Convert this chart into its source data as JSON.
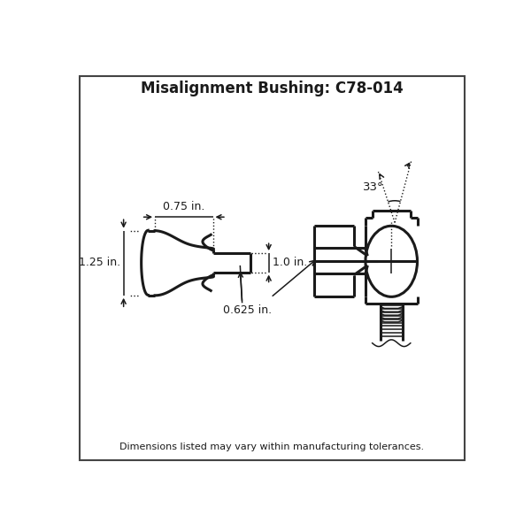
{
  "title": "Misalignment Bushing: C78-014",
  "footer": "Dimensions listed may vary within manufacturing tolerances.",
  "dim_075": "0.75 in.",
  "dim_125": "1.25 in.",
  "dim_10": "1.0 in.",
  "dim_0625": "0.625 in.",
  "angle_label": "33°",
  "line_color": "#1a1a1a",
  "bg_color": "#ffffff",
  "border_color": "#444444",
  "lw_body": 2.2,
  "lw_dim": 1.1,
  "lw_dot": 1.0
}
